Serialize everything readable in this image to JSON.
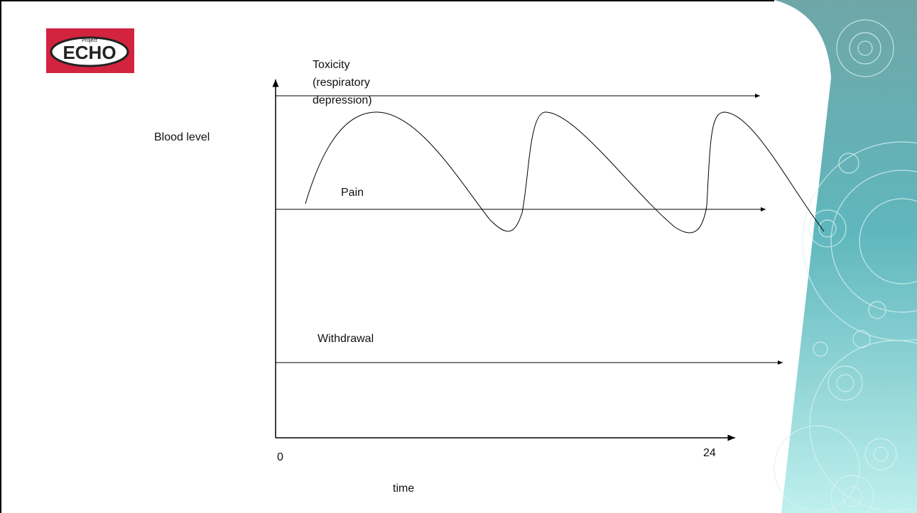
{
  "logo": {
    "small": "Project",
    "main": "ECHO"
  },
  "diagram": {
    "y_axis_label": "Blood level",
    "x_axis_label": "time",
    "x_start": 0,
    "x_end": 24,
    "thresholds": [
      {
        "lines": [
          "Toxicity",
          "(respiratory",
          "depression)"
        ]
      },
      {
        "lines": [
          "Pain"
        ]
      },
      {
        "lines": [
          "Withdrawal"
        ]
      }
    ]
  }
}
